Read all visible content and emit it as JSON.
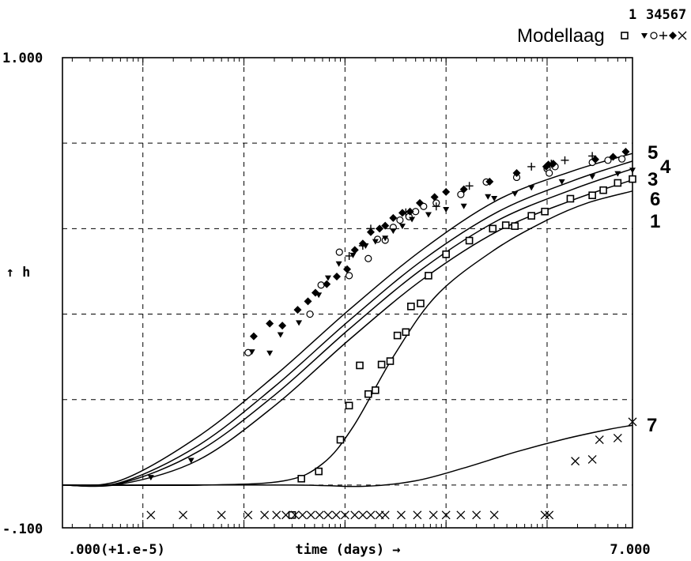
{
  "chart_data": {
    "type": "scatter",
    "title": "",
    "xlabel": "time (days) →",
    "ylabel": "↑ h",
    "xscale": "log",
    "x_tick_left": ".000(+1.e-5)",
    "x_tick_right": "7.000",
    "y_tick_top": "1.000",
    "y_tick_bottom": "-.100",
    "ylim": [
      -0.1,
      1.0
    ],
    "grid": true,
    "legend": {
      "title": "Modellaag",
      "numbers_line1": "1",
      "numbers_line2": "34567",
      "placement": "top-right"
    },
    "series": [
      {
        "name": "5",
        "marker": "none",
        "curve": true,
        "x": [
          1.6e-05,
          6e-05,
          0.00035,
          0.002,
          0.011,
          0.06,
          0.33,
          1.8,
          7.0
        ],
        "y": [
          0.0,
          0.011,
          0.113,
          0.255,
          0.41,
          0.553,
          0.668,
          0.735,
          0.776
        ]
      },
      {
        "name": "4",
        "marker": "none",
        "curve": true,
        "x": [
          1.6e-05,
          6e-05,
          0.00035,
          0.002,
          0.011,
          0.06,
          0.33,
          1.8,
          7.0
        ],
        "y": [
          0.0,
          0.006,
          0.092,
          0.23,
          0.385,
          0.528,
          0.64,
          0.712,
          0.758
        ]
      },
      {
        "name": "3",
        "marker": "none",
        "curve": true,
        "x": [
          1.6e-05,
          6e-05,
          0.00035,
          0.002,
          0.011,
          0.06,
          0.33,
          1.8,
          7.0
        ],
        "y": [
          0.0,
          0.004,
          0.078,
          0.21,
          0.365,
          0.508,
          0.62,
          0.692,
          0.74
        ]
      },
      {
        "name": "6",
        "marker": "none",
        "curve": true,
        "x": [
          1.6e-05,
          6e-05,
          0.00035,
          0.002,
          0.011,
          0.06,
          0.33,
          1.8,
          7.0
        ],
        "y": [
          0.0,
          0.002,
          0.058,
          0.185,
          0.34,
          0.483,
          0.595,
          0.667,
          0.714
        ]
      },
      {
        "name": "1",
        "marker": "none",
        "curve": true,
        "x": [
          1.6e-05,
          0.0004,
          0.0025,
          0.006,
          0.012,
          0.03,
          0.08,
          0.3,
          1.0,
          2.5,
          7.0
        ],
        "y": [
          0.0,
          0.0,
          0.01,
          0.05,
          0.136,
          0.3,
          0.443,
          0.55,
          0.62,
          0.66,
          0.688
        ]
      },
      {
        "name": "7",
        "marker": "none",
        "curve": true,
        "x": [
          1.6e-05,
          0.003,
          0.015,
          0.05,
          0.15,
          0.5,
          1.5,
          4.0,
          7.0
        ],
        "y": [
          0.0,
          0.0,
          -0.003,
          0.01,
          0.04,
          0.078,
          0.108,
          0.13,
          0.14
        ]
      },
      {
        "name": "1",
        "marker": "square",
        "curve": false,
        "x": [
          0.003,
          0.0037,
          0.0055,
          0.009,
          0.011,
          0.014,
          0.017,
          0.02,
          0.023,
          0.028,
          0.033,
          0.04,
          0.045,
          0.056,
          0.067,
          0.1,
          0.17,
          0.29,
          0.39,
          0.48,
          0.7,
          0.95,
          1.7,
          2.8,
          3.6,
          5.0,
          7.0
        ],
        "y": [
          -0.07,
          0.015,
          0.032,
          0.106,
          0.186,
          0.28,
          0.213,
          0.222,
          0.282,
          0.29,
          0.35,
          0.358,
          0.418,
          0.425,
          0.49,
          0.54,
          0.572,
          0.6,
          0.608,
          0.606,
          0.63,
          0.64,
          0.67,
          0.678,
          0.69,
          0.707,
          0.716
        ]
      },
      {
        "name": "3",
        "marker": "circle",
        "curve": false,
        "x": [
          0.0011,
          0.0045,
          0.0058,
          0.0088,
          0.011,
          0.017,
          0.021,
          0.025,
          0.03,
          0.035,
          0.043,
          0.05,
          0.06,
          0.08,
          0.14,
          0.25,
          0.5,
          1.0,
          1.05,
          1.2,
          2.8,
          4.0,
          5.5
        ],
        "y": [
          0.31,
          0.4,
          0.468,
          0.545,
          0.49,
          0.53,
          0.575,
          0.573,
          0.603,
          0.62,
          0.628,
          0.64,
          0.652,
          0.66,
          0.68,
          0.709,
          0.72,
          0.74,
          0.73,
          0.745,
          0.755,
          0.76,
          0.763
        ]
      },
      {
        "name": "4",
        "marker": "diamond",
        "curve": false,
        "x": [
          0.00125,
          0.0018,
          0.0024,
          0.0034,
          0.0043,
          0.0051,
          0.0066,
          0.0083,
          0.0105,
          0.0125,
          0.015,
          0.018,
          0.022,
          0.025,
          0.03,
          0.037,
          0.044,
          0.055,
          0.077,
          0.1,
          0.15,
          0.27,
          0.5,
          0.98,
          1.03,
          1.15,
          3.0,
          4.5,
          6.0
        ],
        "y": [
          0.348,
          0.378,
          0.373,
          0.41,
          0.43,
          0.45,
          0.47,
          0.488,
          0.505,
          0.55,
          0.565,
          0.592,
          0.6,
          0.607,
          0.625,
          0.637,
          0.64,
          0.66,
          0.674,
          0.686,
          0.692,
          0.71,
          0.73,
          0.745,
          0.75,
          0.752,
          0.762,
          0.768,
          0.78
        ]
      },
      {
        "name": "5",
        "marker": "plus",
        "curve": false,
        "x": [
          0.011,
          0.015,
          0.018,
          0.04,
          0.08,
          0.17,
          0.7,
          1.1,
          1.5,
          2.8
        ],
        "y": [
          0.536,
          0.56,
          0.6,
          0.638,
          0.652,
          0.7,
          0.745,
          0.752,
          0.76,
          0.77
        ]
      },
      {
        "name": "6",
        "marker": "triangle",
        "curve": false,
        "x": [
          0.00012,
          0.0003,
          0.0012,
          0.0018,
          0.0023,
          0.0035,
          0.0055,
          0.0068,
          0.0087,
          0.012,
          0.016,
          0.02,
          0.025,
          0.03,
          0.037,
          0.046,
          0.067,
          0.1,
          0.15,
          0.26,
          0.3,
          0.48,
          0.7,
          1.4,
          2.8,
          5.0,
          7.0
        ],
        "y": [
          0.018,
          0.058,
          0.312,
          0.309,
          0.352,
          0.38,
          0.445,
          0.485,
          0.518,
          0.538,
          0.56,
          0.57,
          0.578,
          0.595,
          0.606,
          0.622,
          0.633,
          0.645,
          0.653,
          0.675,
          0.671,
          0.682,
          0.696,
          0.71,
          0.722,
          0.729,
          0.737
        ]
      },
      {
        "name": "7",
        "marker": "cross",
        "curve": false,
        "x": [
          0.00012,
          0.00025,
          0.0006,
          0.0011,
          0.0016,
          0.0021,
          0.0026,
          0.0032,
          0.0038,
          0.0046,
          0.0056,
          0.0068,
          0.0082,
          0.01,
          0.0125,
          0.015,
          0.018,
          0.022,
          0.025,
          0.036,
          0.052,
          0.075,
          0.1,
          0.14,
          0.2,
          0.3,
          0.95,
          1.05,
          1.9,
          2.8,
          3.3,
          5.0,
          7.0
        ],
        "y": [
          -0.07,
          -0.07,
          -0.07,
          -0.07,
          -0.07,
          -0.07,
          -0.07,
          -0.07,
          -0.07,
          -0.07,
          -0.07,
          -0.07,
          -0.07,
          -0.07,
          -0.07,
          -0.07,
          -0.07,
          -0.07,
          -0.07,
          -0.07,
          -0.07,
          -0.07,
          -0.07,
          -0.07,
          -0.07,
          -0.07,
          -0.07,
          -0.07,
          0.056,
          0.06,
          0.106,
          0.11,
          0.148
        ]
      }
    ],
    "line_labels": [
      "5",
      "4",
      "3",
      "6",
      "1",
      "7"
    ],
    "colors": {
      "ink": "#000000",
      "background": "#ffffff"
    }
  }
}
